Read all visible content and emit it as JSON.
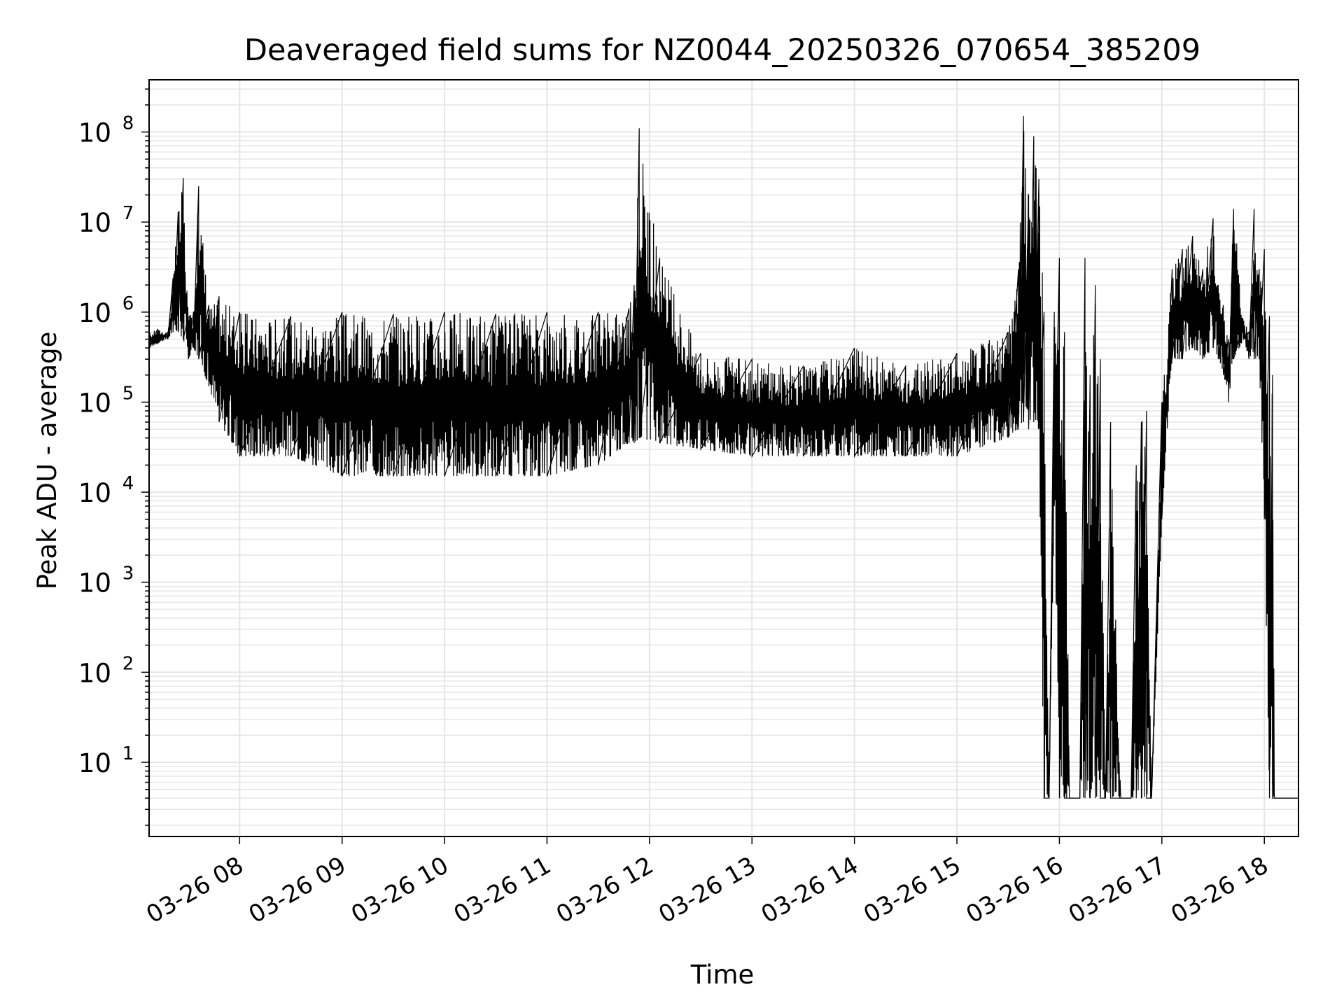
{
  "chart_data": {
    "type": "line",
    "title": "Deaveraged field sums for NZ0044_20250326_070654_385209",
    "xlabel": "Time",
    "ylabel": "Peak ADU - average",
    "yscale": "log",
    "ylim": [
      1.5,
      380000000
    ],
    "xlim": [
      "03-26 07:07",
      "03-26 18:20"
    ],
    "grid": true,
    "line_color": "#000000",
    "grid_color": "#e6e6e6",
    "x_ticks": [
      {
        "label": "03-26 08",
        "hour": 8
      },
      {
        "label": "03-26 09",
        "hour": 9
      },
      {
        "label": "03-26 10",
        "hour": 10
      },
      {
        "label": "03-26 11",
        "hour": 11
      },
      {
        "label": "03-26 12",
        "hour": 12
      },
      {
        "label": "03-26 13",
        "hour": 13
      },
      {
        "label": "03-26 14",
        "hour": 14
      },
      {
        "label": "03-26 15",
        "hour": 15
      },
      {
        "label": "03-26 16",
        "hour": 16
      },
      {
        "label": "03-26 17",
        "hour": 17
      },
      {
        "label": "03-26 18",
        "hour": 18
      }
    ],
    "y_ticks": [
      {
        "base": "10",
        "exp": "1",
        "value": 10
      },
      {
        "base": "10",
        "exp": "2",
        "value": 100
      },
      {
        "base": "10",
        "exp": "3",
        "value": 1000
      },
      {
        "base": "10",
        "exp": "4",
        "value": 10000
      },
      {
        "base": "10",
        "exp": "5",
        "value": 100000
      },
      {
        "base": "10",
        "exp": "6",
        "value": 1000000
      },
      {
        "base": "10",
        "exp": "7",
        "value": 10000000
      },
      {
        "base": "10",
        "exp": "8",
        "value": 100000000
      }
    ],
    "series": [
      {
        "hour": [
          7.12,
          7.2,
          7.3,
          7.35,
          7.4,
          7.45,
          7.5,
          7.55,
          7.6,
          7.7,
          7.8,
          8.0,
          8.5,
          9.0,
          9.5,
          10.0,
          10.5,
          11.0,
          11.5,
          11.8,
          11.85,
          11.9,
          12.1,
          12.5,
          13.0,
          13.5,
          14.0,
          14.5,
          15.0,
          15.5,
          15.6,
          15.65,
          15.7,
          15.75,
          15.8,
          15.85,
          15.9,
          15.95,
          16.0,
          16.05,
          16.1,
          16.15,
          16.2,
          16.25,
          16.3,
          16.35,
          16.4,
          16.45,
          16.5,
          16.6,
          16.7,
          16.75,
          16.8,
          16.85,
          16.9,
          17.0,
          17.1,
          17.2,
          17.3,
          17.4,
          17.5,
          17.55,
          17.6,
          17.65,
          17.7,
          17.8,
          17.85,
          17.9,
          17.95,
          18.0,
          18.05,
          18.08,
          18.1,
          18.15,
          18.33
        ],
        "peak": [
          600000,
          650000,
          600000,
          2400000,
          13000000,
          31000000,
          900000,
          1000000,
          25000000,
          1200000,
          1500000,
          1000000,
          900000,
          1000000,
          950000,
          1000000,
          950000,
          1000000,
          1000000,
          1100000,
          2000000,
          110000000,
          4000000,
          350000,
          300000,
          250000,
          400000,
          250000,
          350000,
          600000,
          3000000,
          150000000,
          20000000,
          90000000,
          30000000,
          1000000,
          4,
          1000000,
          4000000,
          600000,
          4,
          4,
          4,
          4000000,
          200000,
          2000000,
          300000,
          4,
          60000,
          4,
          4,
          20000,
          60000,
          80000,
          4,
          100000,
          3000000,
          5000000,
          7000000,
          3000000,
          11000000,
          2000000,
          1200000,
          500000,
          14000000,
          800000,
          600000,
          14000000,
          3000000,
          5000000,
          900000,
          200000,
          4,
          4,
          4
        ],
        "trough": [
          400000,
          450000,
          500000,
          600000,
          600000,
          500000,
          300000,
          400000,
          300000,
          150000,
          60000,
          25000,
          25000,
          15000,
          15000,
          15000,
          15000,
          15000,
          20000,
          35000,
          35000,
          40000,
          35000,
          30000,
          25000,
          25000,
          25000,
          25000,
          25000,
          40000,
          50000,
          60000,
          50000,
          60000,
          50000,
          4,
          4,
          7000,
          4,
          4,
          4,
          4,
          4,
          4,
          4,
          4,
          4,
          4,
          4,
          4,
          4,
          4,
          4,
          4,
          4,
          5000,
          300000,
          300000,
          400000,
          300000,
          400000,
          300000,
          200000,
          100000,
          300000,
          500000,
          300000,
          300000,
          300000,
          5000,
          4,
          4,
          4,
          4,
          4
        ]
      }
    ]
  }
}
